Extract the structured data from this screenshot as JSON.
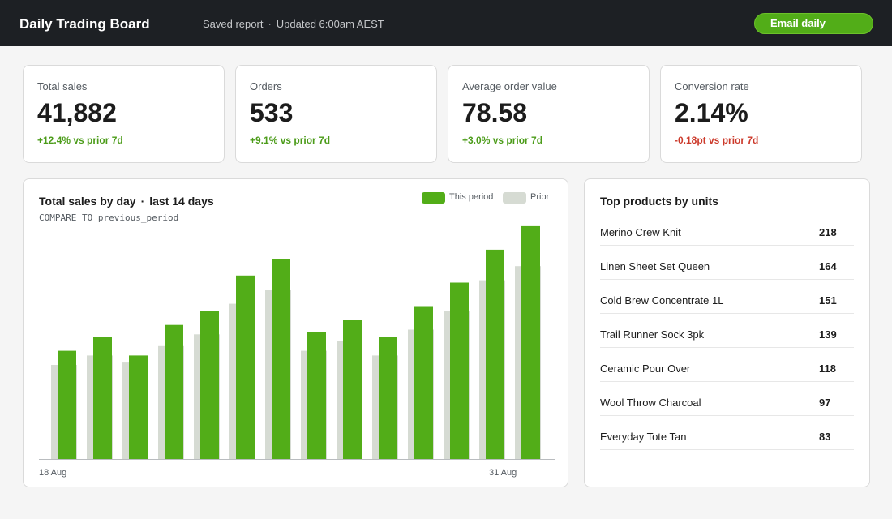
{
  "header": {
    "title": "Daily Trading Board",
    "saved_label": "Saved report",
    "separator": "·",
    "updated_label": "Updated 6:00am AEST",
    "email_button": "Email daily"
  },
  "kpis": [
    {
      "label": "Total sales",
      "value": "41,882",
      "delta": "+12.4% vs prior 7d",
      "trend": "up"
    },
    {
      "label": "Orders",
      "value": "533",
      "delta": "+9.1% vs prior 7d",
      "trend": "up"
    },
    {
      "label": "Average order value",
      "value": "78.58",
      "delta": "+3.0% vs prior 7d",
      "trend": "up"
    },
    {
      "label": "Conversion rate",
      "value": "2.14%",
      "delta": "-0.18pt vs prior 7d",
      "trend": "down"
    }
  ],
  "chart_panel": {
    "title": "Total sales by day",
    "title_separator": "·",
    "title_suffix": "last 14 days",
    "compare_text": "COMPARE TO previous_period"
  },
  "chart_data": {
    "type": "bar",
    "title": "Total sales by day · last 14 days",
    "legend_position": "top-right",
    "grid": false,
    "x_tick_labels": [
      {
        "index": 0,
        "label": "18 Aug"
      },
      {
        "index": 13,
        "label": "31 Aug"
      }
    ],
    "ylim": [
      0,
      100
    ],
    "series": [
      {
        "name": "This period",
        "color": "#52ad18",
        "values": [
          46,
          52,
          44,
          57,
          63,
          78,
          85,
          54,
          59,
          52,
          65,
          75,
          89,
          99
        ]
      },
      {
        "name": "Prior",
        "color": "#d6dbd3",
        "values": [
          40,
          44,
          41,
          48,
          53,
          66,
          72,
          46,
          50,
          44,
          55,
          63,
          76,
          82
        ]
      }
    ]
  },
  "top_products": {
    "title": "Top products by units",
    "items": [
      {
        "name": "Merino Crew Knit",
        "units": "218"
      },
      {
        "name": "Linen Sheet Set Queen",
        "units": "164"
      },
      {
        "name": "Cold Brew Concentrate 1L",
        "units": "151"
      },
      {
        "name": "Trail Runner Sock 3pk",
        "units": "139"
      },
      {
        "name": "Ceramic Pour Over",
        "units": "118"
      },
      {
        "name": "Wool Throw Charcoal",
        "units": "97"
      },
      {
        "name": "Everyday Tote Tan",
        "units": "83"
      }
    ]
  }
}
